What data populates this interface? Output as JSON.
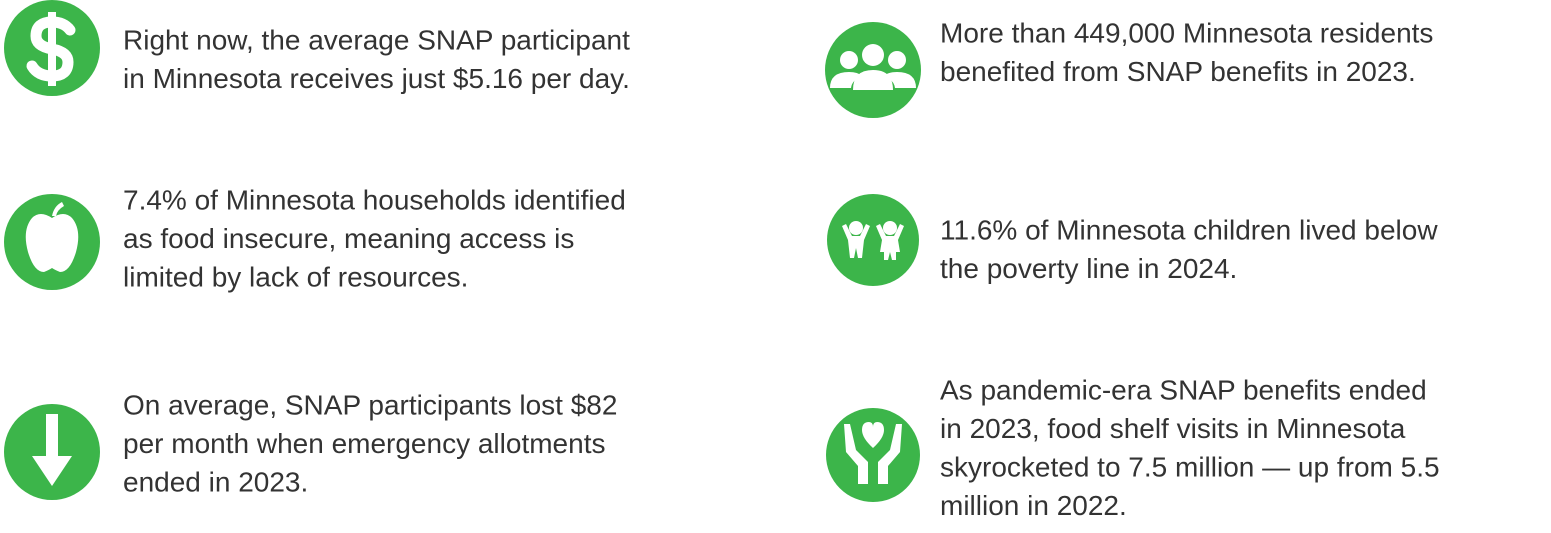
{
  "items": [
    {
      "lines": [
        "Right now, the average SNAP participant",
        "in Minnesota receives just $5.16 per day."
      ]
    },
    {
      "lines": [
        "More than 449,000 Minnesota residents",
        "benefited from SNAP benefits in 2023."
      ]
    },
    {
      "lines": [
        "7.4% of Minnesota households identified",
        "as food insecure, meaning access is",
        "limited by lack of resources."
      ]
    },
    {
      "lines": [
        "11.6% of Minnesota children lived below",
        "the poverty line in 2024."
      ]
    },
    {
      "lines": [
        "On average, SNAP participants lost $82",
        "per month when emergency allotments",
        "ended in 2023."
      ]
    },
    {
      "lines": [
        "As pandemic-era SNAP benefits ended",
        "in 2023, food shelf visits in Minnesota",
        "skyrocketed to 7.5 million — up from 5.5",
        "million in 2022."
      ]
    }
  ]
}
